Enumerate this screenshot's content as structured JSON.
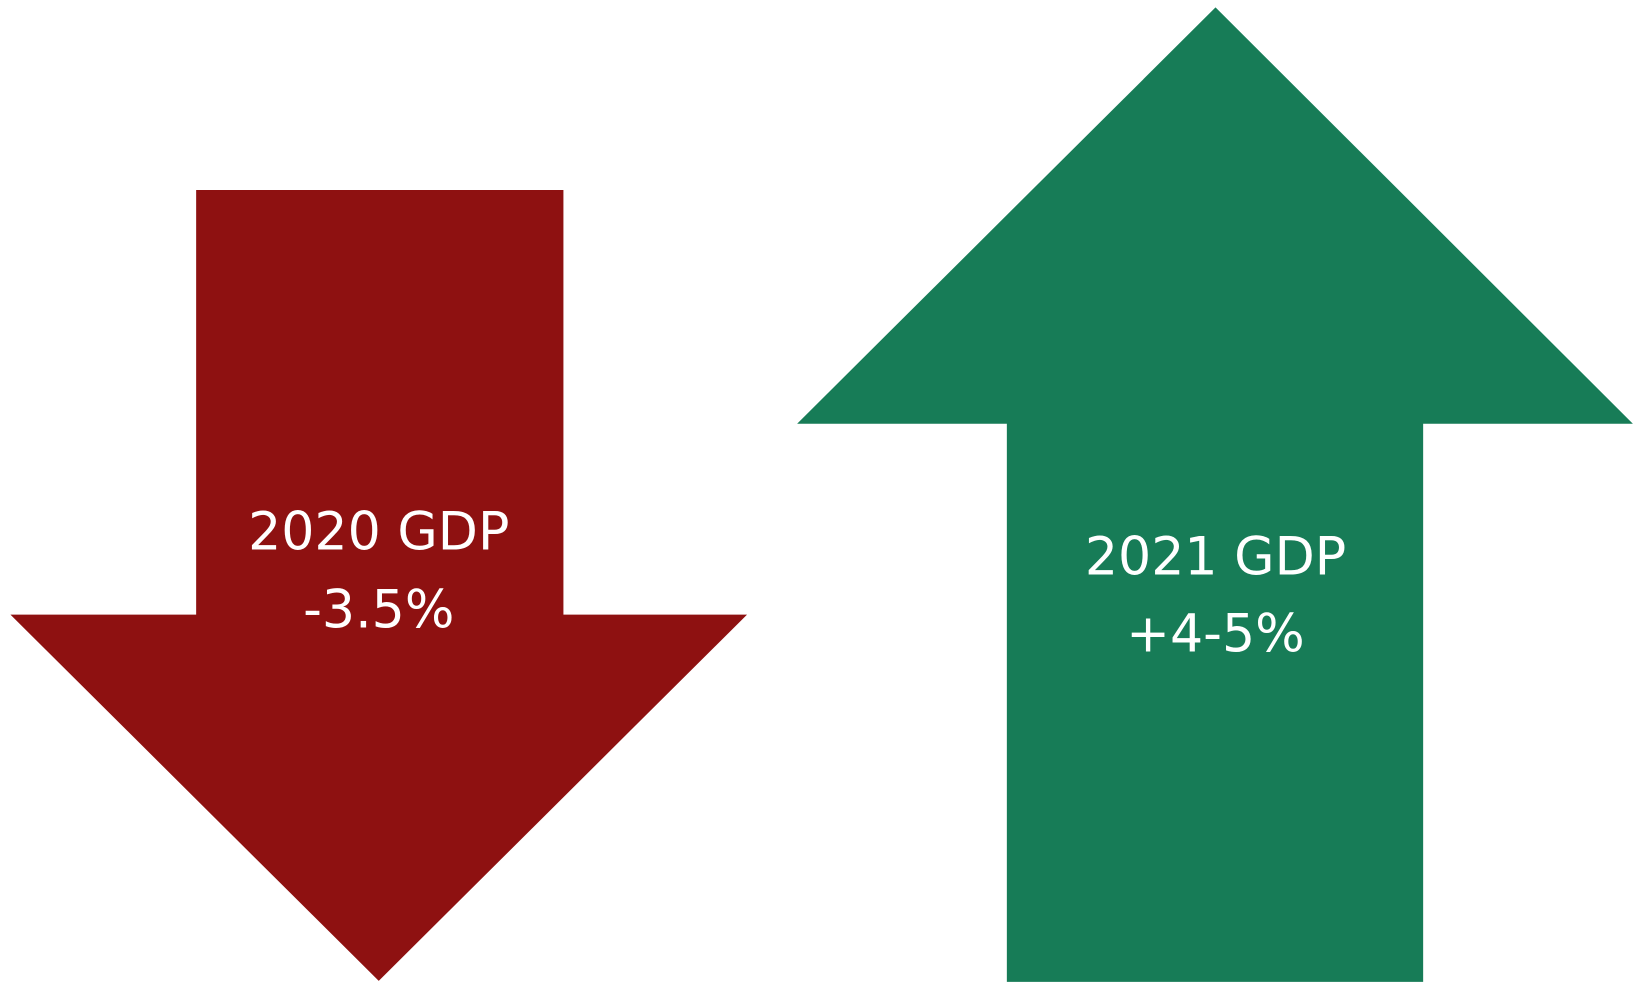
{
  "arrows": [
    {
      "lines": [
        "2020 GDP",
        "-3.5%"
      ]
    },
    {
      "lines": [
        "2021 GDP",
        "+4-5%"
      ]
    }
  ]
}
